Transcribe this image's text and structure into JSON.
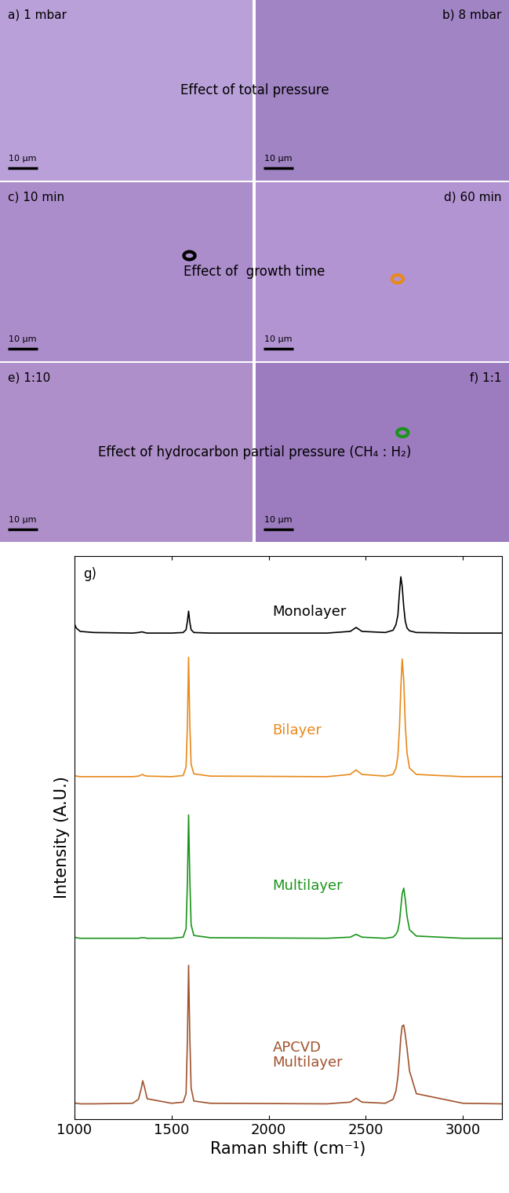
{
  "micrographs": [
    {
      "label": "a) 1 mbar",
      "scale_bar": "10 µm",
      "color": "#b9a0d8"
    },
    {
      "label": "b) 8 mbar",
      "scale_bar": "10 µm",
      "color": "#a184c4"
    },
    {
      "label": "c) 10 min",
      "scale_bar": "10 µm",
      "color": "#ac8dcb"
    },
    {
      "label": "d) 60 min",
      "scale_bar": "10 µm",
      "color": "#b394d2"
    },
    {
      "label": "e) 1:10",
      "scale_bar": "10 µm",
      "color": "#ae8fc9"
    },
    {
      "label": "f) 1:1",
      "scale_bar": "10 µm",
      "color": "#9c7bbf"
    }
  ],
  "captions": [
    "Effect of total pressure",
    "Effect of  growth time",
    "Effect of hydrocarbon partial pressure (CH₄ : H₂)"
  ],
  "chart_data": {
    "type": "line",
    "panel_label": "g)",
    "x_label": "Raman shift (cm⁻¹)",
    "y_label": "Intensity (A.U.)",
    "xlim": [
      1000,
      3200
    ],
    "xticks": [
      1000,
      1500,
      2000,
      2500,
      3000
    ],
    "ylim": [
      0,
      100
    ],
    "yticks": [],
    "tick_labels": "x",
    "x": [
      1000,
      1010,
      1030,
      1100,
      1300,
      1330,
      1345,
      1352,
      1360,
      1375,
      1500,
      1560,
      1575,
      1582,
      1588,
      1594,
      1601,
      1615,
      1700,
      2300,
      2420,
      2450,
      2480,
      2600,
      2640,
      2655,
      2665,
      2673,
      2680,
      2687,
      2695,
      2703,
      2712,
      2725,
      2760,
      3000,
      3200
    ],
    "series": [
      {
        "name": "Monolayer",
        "color": "#000000",
        "values": [
          88.0,
          87.2,
          86.6,
          86.4,
          86.3,
          86.4,
          86.5,
          86.5,
          86.4,
          86.3,
          86.3,
          86.4,
          86.9,
          88.4,
          90.2,
          88.3,
          86.9,
          86.4,
          86.3,
          86.3,
          86.6,
          87.3,
          86.6,
          86.4,
          86.8,
          87.8,
          89.5,
          93.5,
          96.3,
          94.6,
          91.0,
          88.4,
          87.2,
          86.7,
          86.4,
          86.3,
          86.3
        ]
      },
      {
        "name": "Bilayer",
        "color": "#e8891a",
        "values": [
          61.0,
          60.9,
          60.8,
          60.8,
          60.8,
          60.9,
          61.1,
          61.2,
          61.0,
          60.9,
          60.8,
          61.0,
          62.5,
          70.0,
          82.0,
          70.5,
          63.0,
          61.3,
          60.9,
          60.8,
          61.2,
          62.0,
          61.2,
          60.9,
          61.2,
          62.3,
          64.5,
          69.5,
          76.5,
          81.7,
          78.0,
          70.0,
          65.0,
          62.3,
          61.2,
          60.8,
          60.8
        ]
      },
      {
        "name": "Multilayer",
        "color": "#1a941a",
        "values": [
          32.3,
          32.2,
          32.1,
          32.1,
          32.1,
          32.1,
          32.2,
          32.2,
          32.2,
          32.1,
          32.1,
          32.3,
          33.8,
          42.0,
          54.0,
          43.0,
          34.5,
          32.6,
          32.2,
          32.1,
          32.3,
          32.8,
          32.3,
          32.1,
          32.3,
          32.8,
          33.5,
          35.0,
          37.5,
          40.0,
          41.0,
          39.0,
          36.0,
          33.6,
          32.5,
          32.1,
          32.1
        ]
      },
      {
        "name": "APCVD\nMultilayer",
        "color": "#a0522d",
        "values": [
          2.9,
          2.8,
          2.7,
          2.7,
          2.8,
          3.5,
          5.5,
          6.8,
          5.8,
          3.6,
          2.8,
          3.0,
          4.5,
          14.0,
          27.3,
          15.0,
          5.5,
          3.2,
          2.8,
          2.7,
          3.0,
          3.7,
          3.0,
          2.8,
          3.5,
          5.0,
          7.5,
          11.0,
          14.5,
          16.5,
          16.7,
          15.0,
          12.5,
          8.5,
          4.5,
          2.8,
          2.7
        ]
      }
    ]
  }
}
